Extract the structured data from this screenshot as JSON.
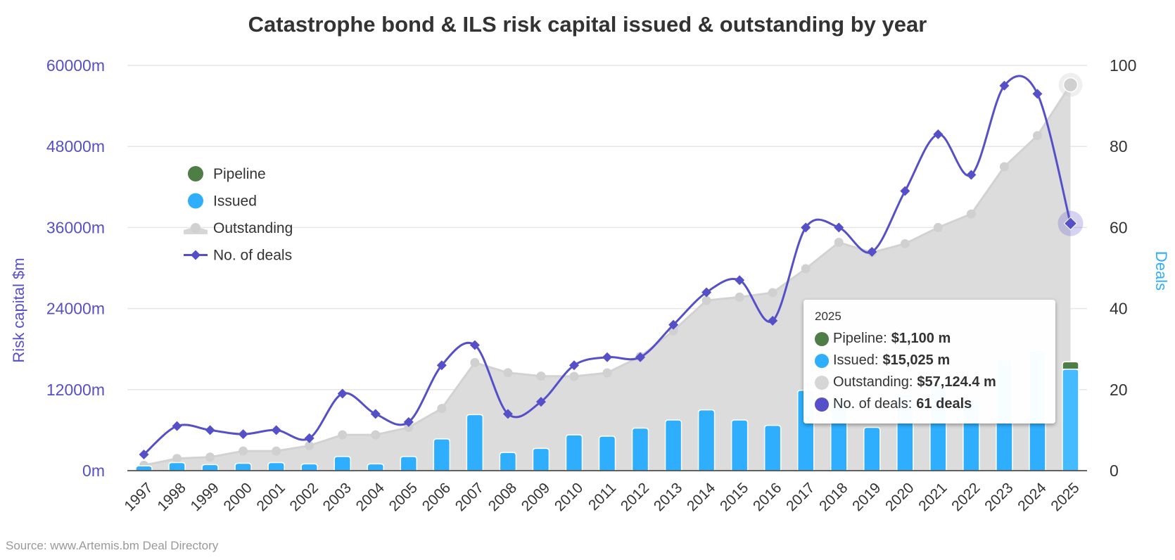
{
  "chart_data": {
    "type": "bar+area+line",
    "title": "Catastrophe bond & ILS risk capital issued & outstanding by year",
    "source": "Source: www.Artemis.bm Deal Directory",
    "categories": [
      "1997",
      "1998",
      "1999",
      "2000",
      "2001",
      "2002",
      "2003",
      "2004",
      "2005",
      "2006",
      "2007",
      "2008",
      "2009",
      "2010",
      "2011",
      "2012",
      "2013",
      "2014",
      "2015",
      "2016",
      "2017",
      "2018",
      "2019",
      "2020",
      "2021",
      "2022",
      "2023",
      "2024",
      "2025"
    ],
    "y_left": {
      "label": "Risk capital $m",
      "min": 0,
      "max": 60000,
      "ticks": [
        "0m",
        "12000m",
        "24000m",
        "36000m",
        "48000m",
        "60000m"
      ],
      "tick_values": [
        0,
        12000,
        24000,
        36000,
        48000,
        60000
      ]
    },
    "y_right": {
      "label": "Deals",
      "min": 0,
      "max": 100,
      "ticks": [
        "0",
        "20",
        "40",
        "60",
        "80",
        "100"
      ],
      "tick_values": [
        0,
        20,
        40,
        60,
        80,
        100
      ]
    },
    "grid": true,
    "legend_position": "top-left (inside plot)",
    "series": [
      {
        "name": "Pipeline",
        "type": "stacked-bar",
        "color": "#4e7d46",
        "values": [
          0,
          0,
          0,
          0,
          0,
          0,
          0,
          0,
          0,
          0,
          0,
          0,
          0,
          0,
          0,
          0,
          0,
          0,
          0,
          0,
          0,
          0,
          0,
          0,
          0,
          0,
          0,
          0,
          1100
        ]
      },
      {
        "name": "Issued",
        "type": "bar",
        "color": "#2eaefc",
        "values": [
          700,
          1200,
          900,
          1100,
          1200,
          1000,
          2100,
          1000,
          2100,
          4700,
          8300,
          2700,
          3300,
          5300,
          5100,
          6300,
          7500,
          9000,
          7500,
          6700,
          11900,
          10900,
          6400,
          11300,
          12900,
          10400,
          16400,
          17800,
          15025
        ]
      },
      {
        "name": "Outstanding",
        "type": "area",
        "color": "#d6d6d6",
        "values": [
          800,
          1800,
          2000,
          2900,
          2900,
          3700,
          5300,
          5300,
          6400,
          9200,
          16000,
          14500,
          14000,
          13960,
          14480,
          16900,
          20700,
          25200,
          25700,
          26350,
          29900,
          33800,
          32300,
          33600,
          36000,
          38000,
          45000,
          49600,
          57124.4
        ]
      },
      {
        "name": "No. of deals",
        "type": "spline",
        "axis": "right",
        "color": "#5650c8",
        "values": [
          4,
          11,
          10,
          9,
          10,
          8,
          19,
          14,
          12,
          26,
          31,
          14,
          17,
          26,
          28,
          28,
          36,
          44,
          47,
          37,
          60,
          60,
          54,
          69,
          83,
          73,
          95,
          93,
          61
        ]
      }
    ],
    "tooltip": {
      "year": "2025",
      "rows": [
        {
          "label": "Pipeline:",
          "value": "$1,100 m",
          "color": "#4e7d46"
        },
        {
          "label": "Issued:",
          "value": "$15,025 m",
          "color": "#2eaefc"
        },
        {
          "label": "Outstanding:",
          "value": "$57,124.4 m",
          "color": "#d6d6d6"
        },
        {
          "label": "No. of deals:",
          "value": "61 deals",
          "color": "#5650c8"
        }
      ]
    }
  }
}
